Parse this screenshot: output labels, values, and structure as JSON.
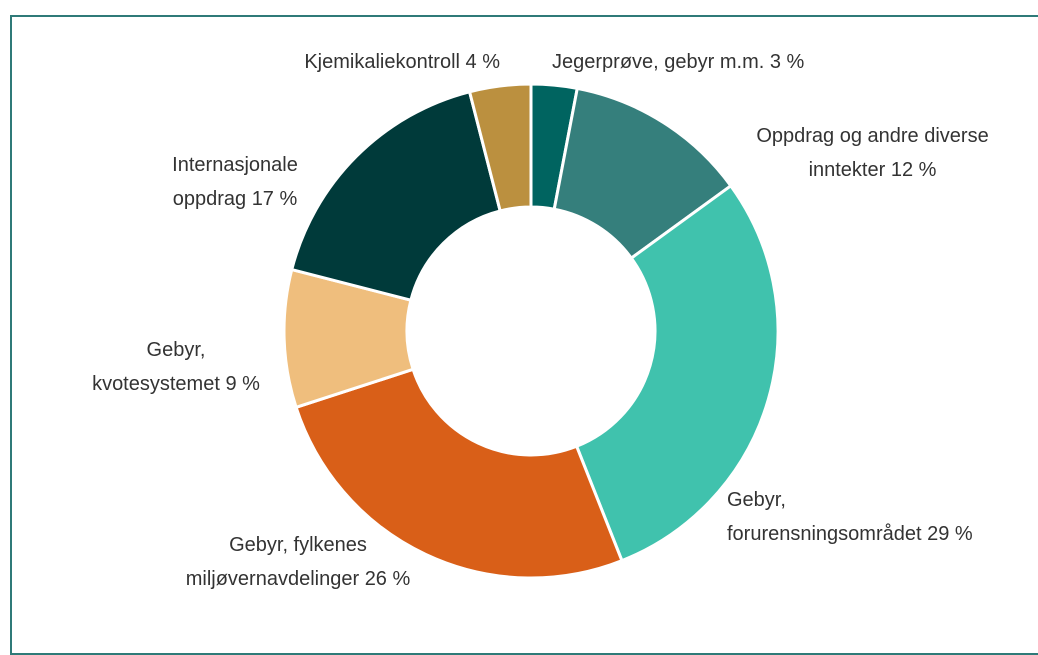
{
  "chart_data": {
    "type": "pie",
    "categories": [
      "Jegerprøve, gebyr m.m.",
      "Oppdrag og andre diverse\ninntekter",
      "Gebyr,\nforurensningsområdet",
      "Gebyr, fylkenes\nmiljøvernavdelinger",
      "Gebyr,\nkvotesystemet",
      "Internasjonale\noppdrag",
      "Kjemikaliekontroll"
    ],
    "values": [
      3,
      12,
      29,
      26,
      9,
      17,
      4
    ],
    "value_labels": [
      "3 %",
      "12 %",
      "29 %",
      "26 %",
      "9 %",
      "17 %",
      "4 %"
    ],
    "colors": [
      "#006460",
      "#357f7c",
      "#40c2ad",
      "#d95f18",
      "#efbe7d",
      "#003a3a",
      "#bb903f"
    ],
    "donut": true
  }
}
